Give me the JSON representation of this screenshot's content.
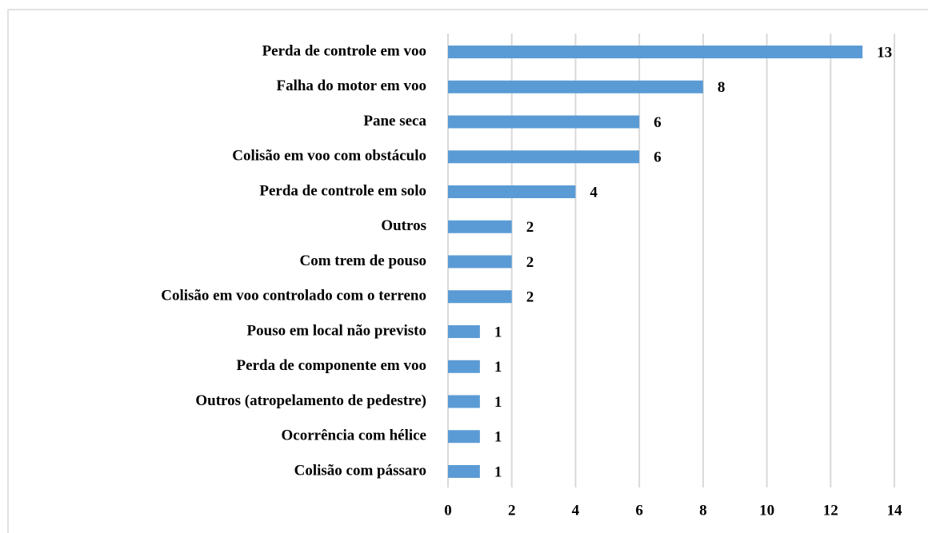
{
  "chart_data": {
    "type": "bar",
    "categories": [
      "Perda de controle em voo",
      "Falha do motor em voo",
      "Pane seca",
      "Colisão em voo com obstáculo",
      "Perda de controle em solo",
      "Outros",
      "Com trem de pouso",
      "Colisão em voo controlado com o terreno",
      "Pouso em local não previsto",
      "Perda de componente em voo",
      "Outros (atropelamento de pedestre)",
      "Ocorrência com hélice",
      "Colisão com pássaro"
    ],
    "values": [
      13,
      8,
      6,
      6,
      4,
      2,
      2,
      2,
      1,
      1,
      1,
      1,
      1
    ],
    "color": "#5b9bd5",
    "xlim": [
      0,
      14
    ],
    "xticks": [
      0,
      2,
      4,
      6,
      8,
      10,
      12,
      14
    ],
    "grid": true,
    "data_labels": true
  }
}
